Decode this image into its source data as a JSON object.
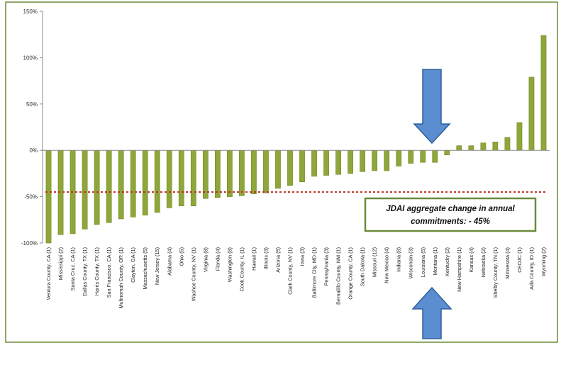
{
  "colors": {
    "frame": "#6b8a3a",
    "bar": "#8ea63a",
    "bar_edge": "#6f8a22",
    "aggregate_line": "#c0392b",
    "arrow": "#5b8ed0",
    "arrow_edge": "#2f5f9e",
    "annotation_border": "#6b8a3a"
  },
  "annotation": {
    "line1": "JDAI aggregate change in annual",
    "line2": "commitments: - 45%"
  },
  "icons": [
    "arrow-down-icon",
    "arrow-up-icon"
  ],
  "chart_data": {
    "type": "bar",
    "y_unit": "percent",
    "ylim": [
      -100,
      150
    ],
    "y_ticks": [
      -100,
      -50,
      0,
      50,
      100,
      150
    ],
    "y_tick_labels": [
      "-100%",
      "-50%",
      "0%",
      "50%",
      "100%",
      "150%"
    ],
    "grid": false,
    "aggregate_line": -45,
    "highlighted_categories": [
      "Montana (1)"
    ],
    "categories": [
      "Ventura County, CA (1)",
      "Mississippi (2)",
      "Santa Cruz, CA (1)",
      "Dallas County, TX (1)",
      "Harris County, TX (1)",
      "San Francisco, CA (1)",
      "Multnomah County, OR (1)",
      "Clayton, GA (1)",
      "Massachusetts (5)",
      "New Jersey (15)",
      "Alabama (4)",
      "Ohio (5)",
      "Washoe County, NV (1)",
      "Virginia (8)",
      "Florida (4)",
      "Washington (8)",
      "Cook County, IL (1)",
      "Hawaii (1)",
      "Illinois (3)",
      "Arizona (5)",
      "Clark County, NV (1)",
      "Iowa (3)",
      "Baltimore City, MD (1)",
      "Pennsylvania (3)",
      "Bernalillo County, NM (1)",
      "Orange County, CA (1)",
      "South Dakota (1)",
      "Missouri (12)",
      "New Mexico (4)",
      "Indiana (8)",
      "Wisconsin (3)",
      "Louisiana (5)",
      "Montana (1)",
      "Kentucky (2)",
      "New Hampshire (1)",
      "Kansas (4)",
      "Nebraska (2)",
      "Shelby County, TN (1)",
      "Minnesota (4)",
      "CEOJC (1)",
      "Ada County, ID (1)",
      "Wyoming (2)"
    ],
    "values": [
      -100,
      -91,
      -90,
      -85,
      -80,
      -78,
      -74,
      -72,
      -70,
      -67,
      -62,
      -60,
      -60,
      -52,
      -51,
      -50,
      -49,
      -47,
      -46,
      -41,
      -38,
      -34,
      -28,
      -27,
      -26,
      -25,
      -23,
      -22,
      -22,
      -17,
      -14,
      -13,
      -13,
      -5,
      5,
      5,
      8,
      9,
      14,
      30,
      79,
      124
    ]
  }
}
